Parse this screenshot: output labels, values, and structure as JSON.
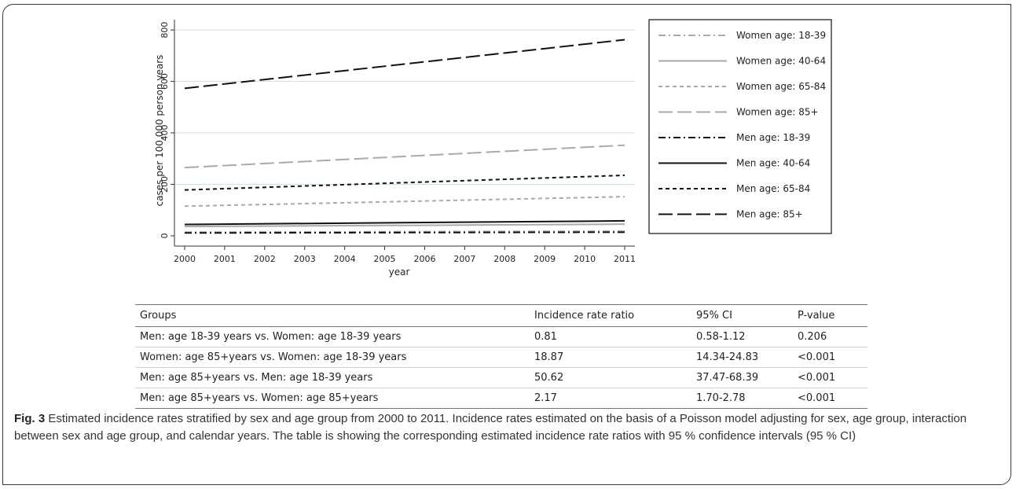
{
  "chart_data": {
    "type": "line",
    "title": "",
    "xlabel": "year",
    "ylabel": "cases per 100,000 person years",
    "x": [
      2000,
      2001,
      2002,
      2003,
      2004,
      2005,
      2006,
      2007,
      2008,
      2009,
      2010,
      2011
    ],
    "xlim": [
      2000,
      2011
    ],
    "ylim": [
      -40,
      840
    ],
    "yticks": [
      0,
      200,
      400,
      600,
      800
    ],
    "grid": "horizontal",
    "legend_position": "right",
    "series": [
      {
        "name": "Women age: 18-39",
        "color": "#aaaaaa",
        "style": "dashdot",
        "start": 14,
        "end": 18
      },
      {
        "name": "Women age: 40-64",
        "color": "#aaaaaa",
        "style": "solid",
        "start": 36,
        "end": 45
      },
      {
        "name": "Women age: 65-84",
        "color": "#aaaaaa",
        "style": "dashed-short",
        "start": 115,
        "end": 152
      },
      {
        "name": "Women age: 85+",
        "color": "#aaaaaa",
        "style": "dashed-long",
        "start": 265,
        "end": 352
      },
      {
        "name": "Men age: 18-39",
        "color": "#111111",
        "style": "dashdot",
        "start": 11,
        "end": 14
      },
      {
        "name": "Men age: 40-64",
        "color": "#111111",
        "style": "solid",
        "start": 44,
        "end": 58
      },
      {
        "name": "Men age: 65-84",
        "color": "#111111",
        "style": "dashed-short",
        "start": 178,
        "end": 235
      },
      {
        "name": "Men age: 85+",
        "color": "#111111",
        "style": "dashed-long",
        "start": 573,
        "end": 762
      }
    ]
  },
  "table": {
    "headers": [
      "Groups",
      "Incidence rate ratio",
      "95% CI",
      "P-value"
    ],
    "rows": [
      [
        "Men: age 18-39 years vs. Women: age 18-39 years",
        "0.81",
        "0.58-1.12",
        "0.206"
      ],
      [
        "Women: age 85+years vs. Women: age 18-39 years",
        "18.87",
        "14.34-24.83",
        "<0.001"
      ],
      [
        "Men: age 85+years vs. Men: age 18-39 years",
        "50.62",
        "37.47-68.39",
        "<0.001"
      ],
      [
        "Men: age 85+years vs. Women: age 85+years",
        "2.17",
        "1.70-2.78",
        "<0.001"
      ]
    ]
  },
  "caption": {
    "label": "Fig. 3",
    "text": " Estimated incidence rates stratified by sex and age group from 2000 to 2011. Incidence rates estimated on the basis of a Poisson model adjusting for sex, age group, interaction between sex and age group, and calendar years. The table is showing the corresponding estimated incidence rate ratios with 95 % confidence intervals (95 % CI)"
  }
}
